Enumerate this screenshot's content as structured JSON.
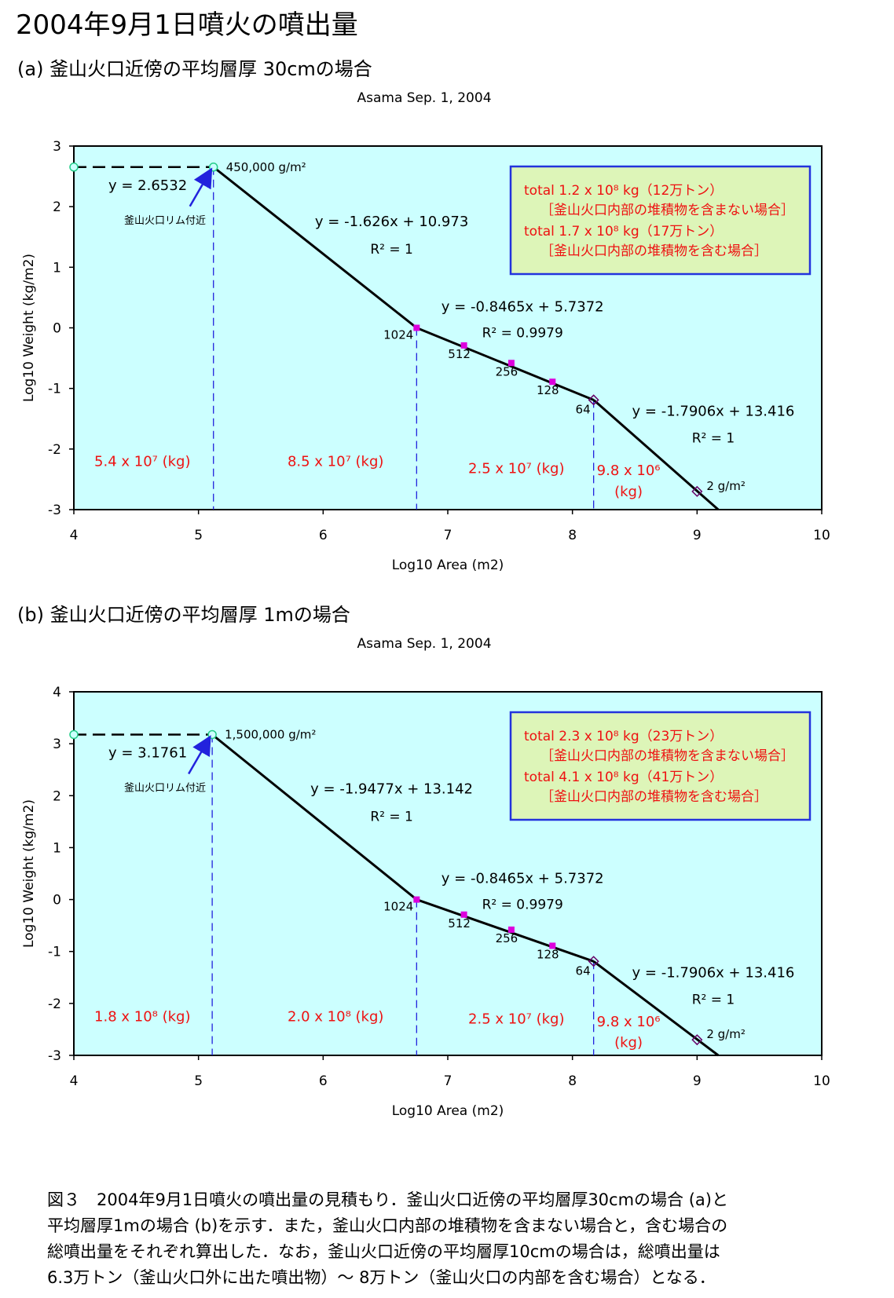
{
  "page": {
    "title": "2004年9月1日噴火の噴出量",
    "caption_lines": [
      "図３　2004年9月1日噴火の噴出量の見積もり．釜山火口近傍の平均層厚30cmの場合 (a)と",
      "平均層厚1mの場合 (b)を示す．また，釜山火口内部の堆積物を含まない場合と，含む場合の",
      "総噴出量をそれぞれ算出した．なお，釜山火口近傍の平均層厚10cmの場合は，総噴出量は",
      "6.3万トン（釜山火口外に出た噴出物）～ 8万トン（釜山火口の内部を含む場合）となる．"
    ]
  },
  "chart_data": [
    {
      "panel_heading": "(a) 釜山火口近傍の平均層厚 30cmの場合",
      "type": "line",
      "title": "Asama Sep. 1, 2004",
      "xlabel": "Log10 Area (m2)",
      "ylabel": "Log10 Weight (kg/m2)",
      "xlim": [
        4,
        10
      ],
      "ylim": [
        -3,
        3
      ],
      "xticks": [
        "4",
        "5",
        "6",
        "7",
        "8",
        "9",
        "10"
      ],
      "yticks": [
        "3",
        "2",
        "1",
        "0",
        "-1",
        "-2",
        "-3"
      ],
      "plot_bg": "#ccffff",
      "horizontal_line": {
        "y": 2.6532,
        "x_from": 4.0,
        "x_to": 5.12,
        "label": "y = 2.6532"
      },
      "rim_point": {
        "x": 5.12,
        "y": 2.6532,
        "label": "450,000 g/m²",
        "arrow_label": "釜山火口リム付近"
      },
      "segments": [
        {
          "x": [
            5.12,
            6.75
          ],
          "y": [
            2.6532,
            0.0
          ],
          "equation": "y = -1.626x + 10.973",
          "r2": "R² = 1"
        },
        {
          "x": [
            6.75,
            8.17
          ],
          "y": [
            0.0,
            -1.19
          ],
          "equation": "y = -0.8465x + 5.7372",
          "r2": "R² = 0.9979"
        },
        {
          "x": [
            8.17,
            9.17
          ],
          "y": [
            -1.19,
            -3.0
          ],
          "equation": "y = -1.7906x + 13.416",
          "r2": "R² = 1"
        }
      ],
      "points": [
        {
          "x": 6.75,
          "y": 0.0,
          "label": "1024",
          "marker": "square"
        },
        {
          "x": 7.13,
          "y": -0.29,
          "label": "512",
          "marker": "square"
        },
        {
          "x": 7.51,
          "y": -0.58,
          "label": "256",
          "marker": "square"
        },
        {
          "x": 7.84,
          "y": -0.89,
          "label": "128",
          "marker": "square"
        },
        {
          "x": 8.17,
          "y": -1.19,
          "label": "64",
          "marker": "diamond"
        },
        {
          "x": 9.0,
          "y": -2.7,
          "label": "2 g/m²",
          "marker": "diamond"
        }
      ],
      "vertical_lines": [
        5.12,
        6.75,
        8.17
      ],
      "volumes": [
        {
          "text": "5.4 x 10⁷ (kg)",
          "x": 4.55,
          "y": -2.2
        },
        {
          "text": "8.5 x 10⁷ (kg)",
          "x": 6.1,
          "y": -2.2
        },
        {
          "text": "2.5 x 10⁷ (kg)",
          "x": 7.55,
          "y": -2.32
        },
        {
          "text": "9.8 x 10⁶",
          "x": 8.45,
          "y": -2.35
        },
        {
          "text": "(kg)",
          "x": 8.45,
          "y": -2.7
        }
      ],
      "totals": [
        "total  1.2 x 10⁸  kg（12万トン）",
        "［釜山火口内部の堆積物を含まない場合］",
        "total  1.7 x 10⁸ kg（17万トン）",
        "［釜山火口内部の堆積物を含む場合］"
      ]
    },
    {
      "panel_heading": "(b) 釜山火口近傍の平均層厚 1mの場合",
      "type": "line",
      "title": "Asama Sep. 1, 2004",
      "xlabel": "Log10 Area (m2)",
      "ylabel": "Log10 Weight (kg/m2)",
      "xlim": [
        4,
        10
      ],
      "ylim": [
        -3,
        4
      ],
      "xticks": [
        "4",
        "5",
        "6",
        "7",
        "8",
        "9",
        "10"
      ],
      "yticks": [
        "4",
        "3",
        "2",
        "1",
        "0",
        "-1",
        "-2",
        "-3"
      ],
      "plot_bg": "#ccffff",
      "horizontal_line": {
        "y": 3.1761,
        "x_from": 4.0,
        "x_to": 5.11,
        "label": "y = 3.1761"
      },
      "rim_point": {
        "x": 5.11,
        "y": 3.1761,
        "label": "1,500,000 g/m²",
        "arrow_label": "釜山火口リム付近"
      },
      "segments": [
        {
          "x": [
            5.11,
            6.75
          ],
          "y": [
            3.1761,
            0.0
          ],
          "equation": "y = -1.9477x + 13.142",
          "r2": "R² = 1"
        },
        {
          "x": [
            6.75,
            8.17
          ],
          "y": [
            0.0,
            -1.19
          ],
          "equation": "y = -0.8465x + 5.7372",
          "r2": "R² = 0.9979"
        },
        {
          "x": [
            8.17,
            9.17
          ],
          "y": [
            -1.19,
            -3.0
          ],
          "equation": "y = -1.7906x + 13.416",
          "r2": "R² = 1"
        }
      ],
      "points": [
        {
          "x": 6.75,
          "y": 0.0,
          "label": "1024",
          "marker": "square"
        },
        {
          "x": 7.13,
          "y": -0.29,
          "label": "512",
          "marker": "square"
        },
        {
          "x": 7.51,
          "y": -0.58,
          "label": "256",
          "marker": "square"
        },
        {
          "x": 7.84,
          "y": -0.89,
          "label": "128",
          "marker": "square"
        },
        {
          "x": 8.17,
          "y": -1.19,
          "label": "64",
          "marker": "diamond"
        },
        {
          "x": 9.0,
          "y": -2.7,
          "label": "2 g/m²",
          "marker": "diamond"
        }
      ],
      "vertical_lines": [
        5.11,
        6.75,
        8.17
      ],
      "volumes": [
        {
          "text": "1.8 x 10⁸ (kg)",
          "x": 4.55,
          "y": -2.25
        },
        {
          "text": "2.0 x 10⁸ (kg)",
          "x": 6.1,
          "y": -2.25
        },
        {
          "text": "2.5 x 10⁷ (kg)",
          "x": 7.55,
          "y": -2.3
        },
        {
          "text": "9.8 x 10⁶",
          "x": 8.45,
          "y": -2.35
        },
        {
          "text": "(kg)",
          "x": 8.45,
          "y": -2.75
        }
      ],
      "totals": [
        "total  2.3 x 10⁸  kg（23万トン）",
        "［釜山火口内部の堆積物を含まない場合］",
        "total  4.1 x 10⁸ kg（41万トン）",
        "［釜山火口内部の堆積物を含む場合］"
      ]
    }
  ]
}
